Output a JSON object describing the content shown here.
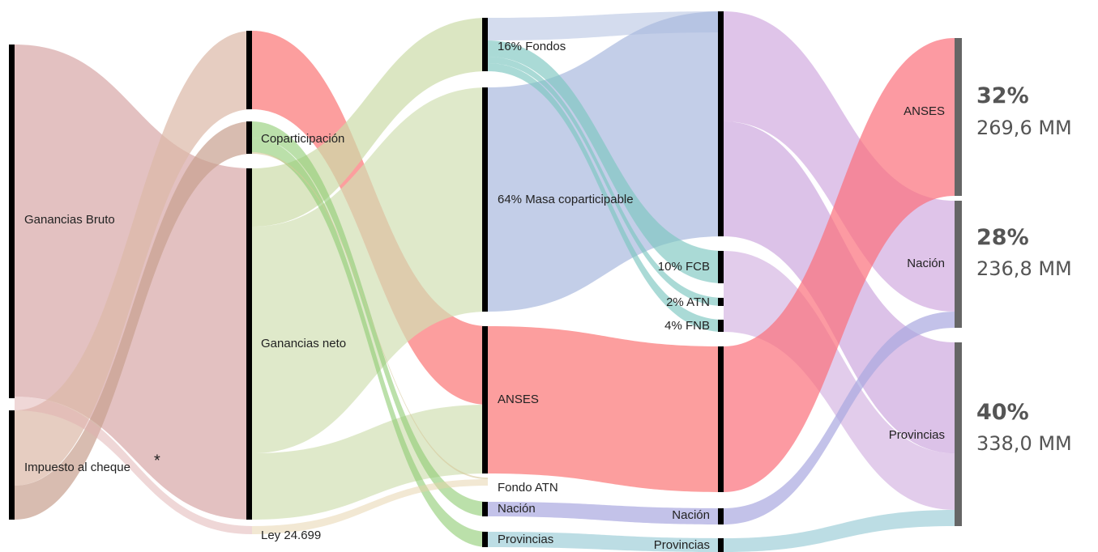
{
  "nodes": [
    {
      "label": "Ganancias Bruto"
    },
    {
      "label": "Impuesto al cheque"
    },
    {
      "label": "*"
    },
    {
      "label": "Coparticipación"
    },
    {
      "label": "Ganancias neto"
    },
    {
      "label": "Ley 24.699"
    },
    {
      "label": "16% Fondos"
    },
    {
      "label": "64% Masa coparticipable"
    },
    {
      "label": "ANSES"
    },
    {
      "label": "Fondo ATN"
    },
    {
      "label": "Nación"
    },
    {
      "label": "Provincias"
    },
    {
      "label": "10% FCB"
    },
    {
      "label": "2% ATN"
    },
    {
      "label": "4% FNB"
    },
    {
      "label": "Nación"
    },
    {
      "label": "Provincias"
    },
    {
      "label": "ANSES"
    },
    {
      "label": "Nación"
    },
    {
      "label": "Provincias"
    }
  ],
  "summary": [
    {
      "share": "32%",
      "amount": "269,6 MM"
    },
    {
      "share": "28%",
      "amount": "236,8 MM"
    },
    {
      "share": "40%",
      "amount": "338,0 MM"
    }
  ]
}
